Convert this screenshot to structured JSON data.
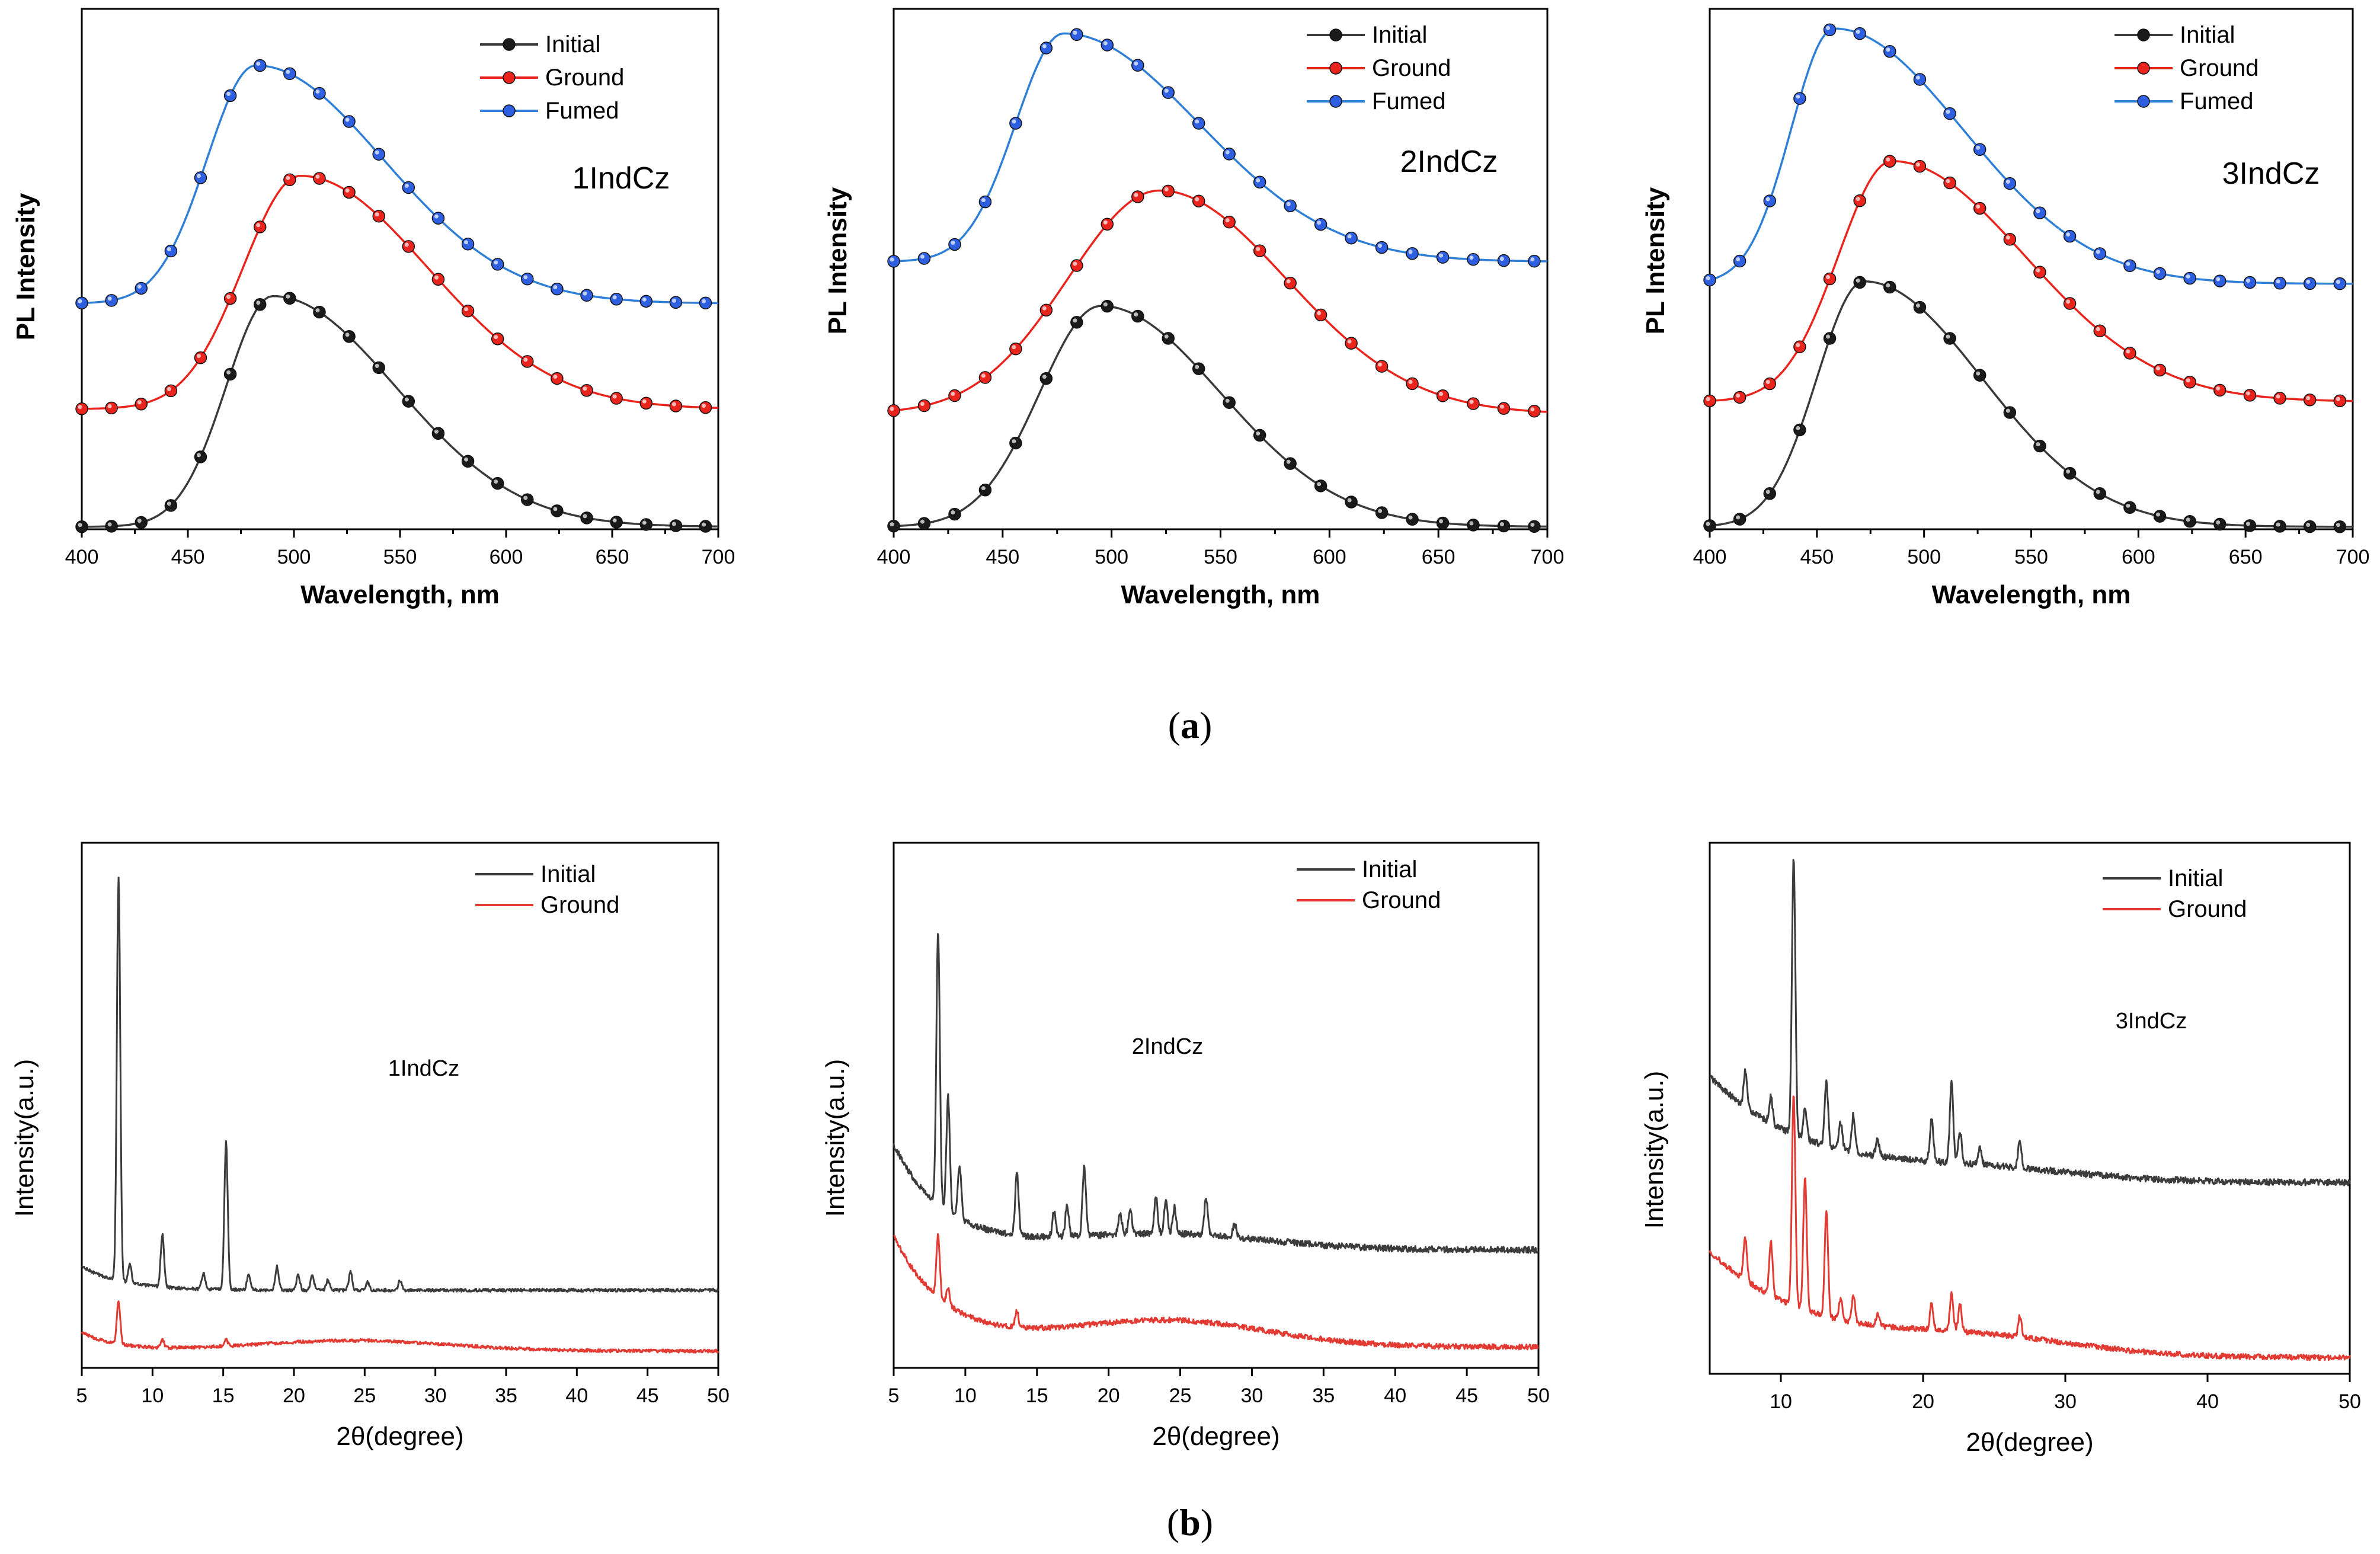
{
  "captions": {
    "a": {
      "open": "(",
      "letter": "a",
      "close": ")"
    },
    "b": {
      "open": "(",
      "letter": "b",
      "close": ")"
    }
  },
  "colors": {
    "initial": "#1a1a1a",
    "initial_line": "#3a3a3a",
    "ground": "#e8241d",
    "fumed": "#2d5fe0",
    "fumed_line": "#2f7fd6",
    "xrd_initial": "#3c3c3c",
    "xrd_ground": "#e23b33"
  },
  "chart_data": [
    {
      "type": "line",
      "title": "1IndCz",
      "xlabel": "Wavelength, nm",
      "ylabel": "PL Intensity",
      "xlim": [
        400,
        700
      ],
      "ylim": [
        0,
        1.06
      ],
      "xticks": [
        400,
        450,
        500,
        550,
        600,
        650,
        700
      ],
      "y_tick_labels": false,
      "legend": "top-right",
      "markers": true,
      "series": [
        {
          "name": "Initial",
          "color_key": "initial",
          "peak": 490,
          "sigL": 22,
          "sigR": 58,
          "base": 0.0,
          "amp": 0.475,
          "tail": 0.01
        },
        {
          "name": "Ground",
          "color_key": "ground",
          "peak": 503,
          "sigL": 27,
          "sigR": 60,
          "base": 0.245,
          "amp": 0.475,
          "tail": 0.0
        },
        {
          "name": "Fumed",
          "color_key": "fumed",
          "peak": 482,
          "sigL": 23,
          "sigR": 60,
          "base": 0.46,
          "amp": 0.485,
          "tail": 0.0
        }
      ]
    },
    {
      "type": "line",
      "title": "2IndCz",
      "xlabel": "Wavelength, nm",
      "ylabel": "PL Intensity",
      "xlim": [
        400,
        700
      ],
      "ylim": [
        0,
        1.06
      ],
      "xticks": [
        400,
        450,
        500,
        550,
        600,
        650,
        700
      ],
      "y_tick_labels": false,
      "legend": "top-right",
      "markers": true,
      "series": [
        {
          "name": "Initial",
          "color_key": "initial",
          "peak": 495,
          "sigL": 28,
          "sigR": 55,
          "base": 0.0,
          "amp": 0.455,
          "tail": 0.01
        },
        {
          "name": "Ground",
          "color_key": "ground",
          "peak": 522,
          "sigL": 42,
          "sigR": 58,
          "base": 0.235,
          "amp": 0.455,
          "tail": 0.0
        },
        {
          "name": "Fumed",
          "color_key": "fumed",
          "peak": 478,
          "sigL": 22,
          "sigR": 62,
          "base": 0.545,
          "amp": 0.465,
          "tail": 0.0
        }
      ]
    },
    {
      "type": "line",
      "title": "3IndCz",
      "xlabel": "Wavelength, nm",
      "ylabel": "PL Intensity",
      "xlim": [
        400,
        700
      ],
      "ylim": [
        0,
        1.06
      ],
      "xticks": [
        400,
        450,
        500,
        550,
        600,
        650,
        700
      ],
      "y_tick_labels": false,
      "legend": "top-right",
      "markers": true,
      "series": [
        {
          "name": "Initial",
          "color_key": "initial",
          "peak": 472,
          "sigL": 22,
          "sigR": 55,
          "base": 0.0,
          "amp": 0.505,
          "tail": 0.01
        },
        {
          "name": "Ground",
          "color_key": "ground",
          "peak": 485,
          "sigL": 25,
          "sigR": 62,
          "base": 0.26,
          "amp": 0.49,
          "tail": 0.0
        },
        {
          "name": "Fumed",
          "color_key": "fumed",
          "peak": 458,
          "sigL": 20,
          "sigR": 60,
          "base": 0.5,
          "amp": 0.52,
          "tail": 0.0
        }
      ]
    },
    {
      "type": "line",
      "title": "1IndCz",
      "xlabel": "2θ(degree)",
      "ylabel": "Intensity(a.u.)",
      "xlim": [
        5,
        50
      ],
      "ylim": [
        0,
        1.0
      ],
      "xticks": [
        5,
        10,
        15,
        20,
        25,
        30,
        35,
        40,
        45,
        50
      ],
      "y_tick_labels": false,
      "legend": "top-right",
      "markers": false,
      "series": [
        {
          "name": "Initial",
          "color_key": "xrd_initial",
          "base": 0.148,
          "decay": 0.045,
          "decay_rate": 0.35,
          "hump": 0.0,
          "noise": 0.003,
          "peaks": [
            [
              7.6,
              0.77
            ],
            [
              8.4,
              0.035
            ],
            [
              10.7,
              0.1
            ],
            [
              13.6,
              0.03
            ],
            [
              15.2,
              0.28
            ],
            [
              16.8,
              0.03
            ],
            [
              18.8,
              0.045
            ],
            [
              20.3,
              0.03
            ],
            [
              21.3,
              0.028
            ],
            [
              22.4,
              0.02
            ],
            [
              24.0,
              0.035
            ],
            [
              25.2,
              0.015
            ],
            [
              27.5,
              0.018
            ]
          ]
        },
        {
          "name": "Ground",
          "color_key": "xrd_ground",
          "base": 0.032,
          "decay": 0.035,
          "decay_rate": 0.4,
          "hump": 0.02,
          "noise": 0.003,
          "peaks": [
            [
              7.6,
              0.08
            ],
            [
              10.7,
              0.015
            ],
            [
              15.2,
              0.012
            ]
          ]
        }
      ]
    },
    {
      "type": "line",
      "title": "2IndCz",
      "xlabel": "2θ(degree)",
      "ylabel": "Intensity(a.u.)",
      "xlim": [
        5,
        50
      ],
      "ylim": [
        0,
        1.0
      ],
      "xticks": [
        5,
        10,
        15,
        20,
        25,
        30,
        35,
        40,
        45,
        50
      ],
      "y_tick_labels": false,
      "legend": "top-right",
      "markers": false,
      "series": [
        {
          "name": "Initial",
          "color_key": "xrd_initial",
          "base": 0.225,
          "decay": 0.2,
          "decay_rate": 0.28,
          "hump": 0.03,
          "noise": 0.006,
          "peaks": [
            [
              8.1,
              0.52
            ],
            [
              8.8,
              0.22
            ],
            [
              9.6,
              0.1
            ],
            [
              13.6,
              0.12
            ],
            [
              16.2,
              0.05
            ],
            [
              17.1,
              0.06
            ],
            [
              18.3,
              0.13
            ],
            [
              20.8,
              0.04
            ],
            [
              21.5,
              0.05
            ],
            [
              23.3,
              0.07
            ],
            [
              24.0,
              0.06
            ],
            [
              24.6,
              0.05
            ],
            [
              26.8,
              0.07
            ],
            [
              28.8,
              0.025
            ]
          ]
        },
        {
          "name": "Ground",
          "color_key": "xrd_ground",
          "base": 0.04,
          "decay": 0.21,
          "decay_rate": 0.27,
          "hump": 0.05,
          "noise": 0.005,
          "peaks": [
            [
              8.1,
              0.12
            ],
            [
              8.8,
              0.03
            ],
            [
              13.6,
              0.03
            ]
          ]
        }
      ]
    },
    {
      "type": "line",
      "title": "3IndCz",
      "xlabel": "2θ(degree)",
      "ylabel": "Intensity(a.u.)",
      "xlim": [
        5,
        50
      ],
      "ylim": [
        0,
        1.0
      ],
      "xticks": [
        10,
        20,
        30,
        40,
        50
      ],
      "y_tick_labels": false,
      "legend": "top-right",
      "markers": false,
      "series": [
        {
          "name": "Initial",
          "color_key": "xrd_initial",
          "base": 0.36,
          "decay": 0.2,
          "decay_rate": 0.14,
          "hump": 0.02,
          "noise": 0.006,
          "peaks": [
            [
              7.5,
              0.07
            ],
            [
              9.3,
              0.05
            ],
            [
              10.9,
              0.52
            ],
            [
              11.7,
              0.06
            ],
            [
              13.2,
              0.12
            ],
            [
              14.2,
              0.05
            ],
            [
              15.1,
              0.07
            ],
            [
              16.8,
              0.03
            ],
            [
              20.6,
              0.08
            ],
            [
              22.0,
              0.15
            ],
            [
              22.6,
              0.06
            ],
            [
              24.0,
              0.03
            ],
            [
              26.8,
              0.05
            ]
          ]
        },
        {
          "name": "Ground",
          "color_key": "xrd_ground",
          "base": 0.03,
          "decay": 0.2,
          "decay_rate": 0.13,
          "hump": 0.03,
          "noise": 0.005,
          "peaks": [
            [
              7.5,
              0.08
            ],
            [
              9.3,
              0.1
            ],
            [
              10.9,
              0.4
            ],
            [
              11.7,
              0.25
            ],
            [
              13.2,
              0.2
            ],
            [
              14.2,
              0.04
            ],
            [
              15.1,
              0.05
            ],
            [
              16.8,
              0.02
            ],
            [
              20.6,
              0.05
            ],
            [
              22.0,
              0.07
            ],
            [
              22.6,
              0.05
            ],
            [
              26.8,
              0.04
            ]
          ]
        }
      ]
    }
  ]
}
